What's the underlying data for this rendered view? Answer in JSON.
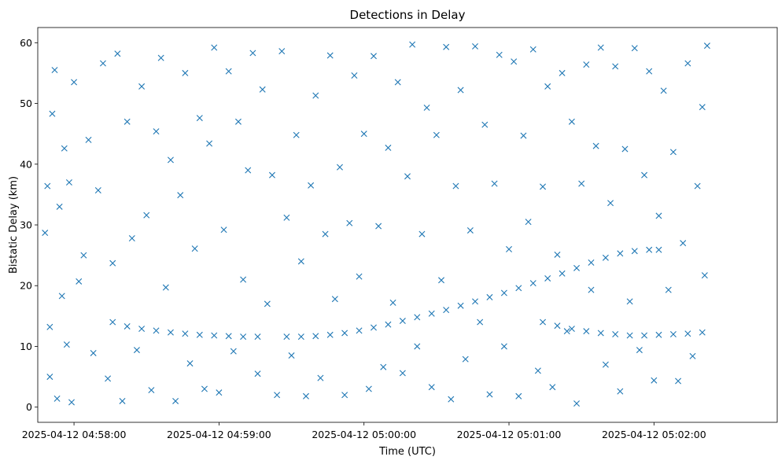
{
  "chart_data": {
    "type": "scatter",
    "title": "Detections in Delay",
    "xlabel": "Time (UTC)",
    "ylabel": "Bistatic Delay (km)",
    "marker": "x",
    "color": "#1f77b4",
    "grid": false,
    "legend": "none",
    "xlim": [
      "2025-04-12 04:57:45",
      "2025-04-12 05:02:51"
    ],
    "ylim": [
      -2.5,
      62.5
    ],
    "xticks": [
      "2025-04-12 04:58:00",
      "2025-04-12 04:59:00",
      "2025-04-12 05:00:00",
      "2025-04-12 05:01:00",
      "2025-04-12 05:02:00"
    ],
    "yticks": [
      0,
      10,
      20,
      30,
      40,
      50,
      60
    ],
    "series": [
      {
        "note": "target track segments (dense connected curves)",
        "points": [
          [
            "2025-04-12 04:58:16",
            14.0
          ],
          [
            "2025-04-12 04:58:22",
            13.3
          ],
          [
            "2025-04-12 04:58:28",
            12.9
          ],
          [
            "2025-04-12 04:58:34",
            12.6
          ],
          [
            "2025-04-12 04:58:40",
            12.3
          ],
          [
            "2025-04-12 04:58:46",
            12.1
          ],
          [
            "2025-04-12 04:58:52",
            11.9
          ],
          [
            "2025-04-12 04:58:58",
            11.8
          ],
          [
            "2025-04-12 04:59:04",
            11.7
          ],
          [
            "2025-04-12 04:59:10",
            11.6
          ],
          [
            "2025-04-12 04:59:16",
            11.6
          ],
          [
            "2025-04-12 04:59:28",
            11.6
          ],
          [
            "2025-04-12 04:59:34",
            11.6
          ],
          [
            "2025-04-12 04:59:40",
            11.7
          ],
          [
            "2025-04-12 04:59:46",
            11.9
          ],
          [
            "2025-04-12 04:59:52",
            12.2
          ],
          [
            "2025-04-12 04:59:58",
            12.6
          ],
          [
            "2025-04-12 05:00:04",
            13.1
          ],
          [
            "2025-04-12 05:00:10",
            13.6
          ],
          [
            "2025-04-12 05:00:16",
            14.2
          ],
          [
            "2025-04-12 05:00:22",
            14.8
          ],
          [
            "2025-04-12 05:00:28",
            15.4
          ],
          [
            "2025-04-12 05:00:34",
            16.0
          ],
          [
            "2025-04-12 05:00:40",
            16.7
          ],
          [
            "2025-04-12 05:00:46",
            17.4
          ],
          [
            "2025-04-12 05:00:52",
            18.1
          ],
          [
            "2025-04-12 05:00:58",
            18.8
          ],
          [
            "2025-04-12 05:01:04",
            19.6
          ],
          [
            "2025-04-12 05:01:10",
            20.4
          ],
          [
            "2025-04-12 05:01:16",
            21.2
          ],
          [
            "2025-04-12 05:01:22",
            22.0
          ],
          [
            "2025-04-12 05:01:28",
            22.9
          ],
          [
            "2025-04-12 05:01:34",
            23.8
          ],
          [
            "2025-04-12 05:01:40",
            24.6
          ],
          [
            "2025-04-12 05:01:46",
            25.3
          ],
          [
            "2025-04-12 05:01:52",
            25.7
          ],
          [
            "2025-04-12 05:01:58",
            25.9
          ],
          [
            "2025-04-12 05:02:02",
            25.9
          ],
          [
            "2025-04-12 05:01:14",
            14.0
          ],
          [
            "2025-04-12 05:01:20",
            13.4
          ],
          [
            "2025-04-12 05:01:26",
            12.9
          ],
          [
            "2025-04-12 05:01:32",
            12.5
          ],
          [
            "2025-04-12 05:01:38",
            12.2
          ],
          [
            "2025-04-12 05:01:44",
            12.0
          ],
          [
            "2025-04-12 05:01:50",
            11.8
          ],
          [
            "2025-04-12 05:01:56",
            11.8
          ],
          [
            "2025-04-12 05:02:02",
            11.9
          ],
          [
            "2025-04-12 05:02:08",
            12.0
          ],
          [
            "2025-04-12 05:02:14",
            12.1
          ],
          [
            "2025-04-12 05:02:20",
            12.3
          ]
        ]
      },
      {
        "note": "clutter / false detections (sampled)",
        "points": [
          [
            "2025-04-12 04:57:48",
            28.7
          ],
          [
            "2025-04-12 04:57:49",
            36.4
          ],
          [
            "2025-04-12 04:57:50",
            13.2
          ],
          [
            "2025-04-12 04:57:50",
            5.0
          ],
          [
            "2025-04-12 04:57:51",
            48.3
          ],
          [
            "2025-04-12 04:57:52",
            55.5
          ],
          [
            "2025-04-12 04:57:53",
            1.4
          ],
          [
            "2025-04-12 04:57:54",
            33.0
          ],
          [
            "2025-04-12 04:57:55",
            18.3
          ],
          [
            "2025-04-12 04:57:56",
            42.6
          ],
          [
            "2025-04-12 04:57:57",
            10.3
          ],
          [
            "2025-04-12 04:57:58",
            37.0
          ],
          [
            "2025-04-12 04:57:59",
            0.8
          ],
          [
            "2025-04-12 04:58:00",
            53.5
          ],
          [
            "2025-04-12 04:58:02",
            20.7
          ],
          [
            "2025-04-12 04:58:04",
            25.0
          ],
          [
            "2025-04-12 04:58:06",
            44.0
          ],
          [
            "2025-04-12 04:58:08",
            8.9
          ],
          [
            "2025-04-12 04:58:10",
            35.7
          ],
          [
            "2025-04-12 04:58:12",
            56.6
          ],
          [
            "2025-04-12 04:58:14",
            4.7
          ],
          [
            "2025-04-12 04:58:16",
            23.7
          ],
          [
            "2025-04-12 04:58:18",
            58.2
          ],
          [
            "2025-04-12 04:58:20",
            1.0
          ],
          [
            "2025-04-12 04:58:22",
            47.0
          ],
          [
            "2025-04-12 04:58:24",
            27.8
          ],
          [
            "2025-04-12 04:58:26",
            9.4
          ],
          [
            "2025-04-12 04:58:28",
            52.8
          ],
          [
            "2025-04-12 04:58:30",
            31.6
          ],
          [
            "2025-04-12 04:58:32",
            2.8
          ],
          [
            "2025-04-12 04:58:34",
            45.4
          ],
          [
            "2025-04-12 04:58:36",
            57.5
          ],
          [
            "2025-04-12 04:58:38",
            19.7
          ],
          [
            "2025-04-12 04:58:40",
            40.7
          ],
          [
            "2025-04-12 04:58:42",
            1.0
          ],
          [
            "2025-04-12 04:58:44",
            34.9
          ],
          [
            "2025-04-12 04:58:46",
            55.0
          ],
          [
            "2025-04-12 04:58:48",
            7.2
          ],
          [
            "2025-04-12 04:58:50",
            26.1
          ],
          [
            "2025-04-12 04:58:52",
            47.6
          ],
          [
            "2025-04-12 04:58:54",
            3.0
          ],
          [
            "2025-04-12 04:58:56",
            43.4
          ],
          [
            "2025-04-12 04:58:58",
            59.2
          ],
          [
            "2025-04-12 04:59:00",
            2.4
          ],
          [
            "2025-04-12 04:59:02",
            29.2
          ],
          [
            "2025-04-12 04:59:04",
            55.3
          ],
          [
            "2025-04-12 04:59:06",
            9.2
          ],
          [
            "2025-04-12 04:59:08",
            47.0
          ],
          [
            "2025-04-12 04:59:10",
            21.0
          ],
          [
            "2025-04-12 04:59:12",
            39.0
          ],
          [
            "2025-04-12 04:59:14",
            58.3
          ],
          [
            "2025-04-12 04:59:16",
            5.5
          ],
          [
            "2025-04-12 04:59:18",
            52.3
          ],
          [
            "2025-04-12 04:59:20",
            17.0
          ],
          [
            "2025-04-12 04:59:22",
            38.2
          ],
          [
            "2025-04-12 04:59:24",
            2.0
          ],
          [
            "2025-04-12 04:59:26",
            58.6
          ],
          [
            "2025-04-12 04:59:28",
            31.2
          ],
          [
            "2025-04-12 04:59:30",
            8.5
          ],
          [
            "2025-04-12 04:59:32",
            44.8
          ],
          [
            "2025-04-12 04:59:34",
            24.0
          ],
          [
            "2025-04-12 04:59:36",
            1.8
          ],
          [
            "2025-04-12 04:59:38",
            36.5
          ],
          [
            "2025-04-12 04:59:40",
            51.3
          ],
          [
            "2025-04-12 04:59:42",
            4.8
          ],
          [
            "2025-04-12 04:59:44",
            28.5
          ],
          [
            "2025-04-12 04:59:46",
            57.9
          ],
          [
            "2025-04-12 04:59:48",
            17.8
          ],
          [
            "2025-04-12 04:59:50",
            39.5
          ],
          [
            "2025-04-12 04:59:52",
            2.0
          ],
          [
            "2025-04-12 04:59:54",
            30.3
          ],
          [
            "2025-04-12 04:59:56",
            54.6
          ],
          [
            "2025-04-12 04:59:58",
            21.5
          ],
          [
            "2025-04-12 05:00:00",
            45.0
          ],
          [
            "2025-04-12 05:00:02",
            3.0
          ],
          [
            "2025-04-12 05:00:04",
            57.8
          ],
          [
            "2025-04-12 05:00:06",
            29.8
          ],
          [
            "2025-04-12 05:00:08",
            6.6
          ],
          [
            "2025-04-12 05:00:10",
            42.7
          ],
          [
            "2025-04-12 05:00:12",
            17.2
          ],
          [
            "2025-04-12 05:00:14",
            53.5
          ],
          [
            "2025-04-12 05:00:16",
            5.6
          ],
          [
            "2025-04-12 05:00:18",
            38.0
          ],
          [
            "2025-04-12 05:00:20",
            59.7
          ],
          [
            "2025-04-12 05:00:22",
            10.0
          ],
          [
            "2025-04-12 05:00:24",
            28.5
          ],
          [
            "2025-04-12 05:00:26",
            49.3
          ],
          [
            "2025-04-12 05:00:28",
            3.3
          ],
          [
            "2025-04-12 05:00:30",
            44.8
          ],
          [
            "2025-04-12 05:00:32",
            20.9
          ],
          [
            "2025-04-12 05:00:34",
            59.3
          ],
          [
            "2025-04-12 05:00:36",
            1.3
          ],
          [
            "2025-04-12 05:00:38",
            36.4
          ],
          [
            "2025-04-12 05:00:40",
            52.2
          ],
          [
            "2025-04-12 05:00:42",
            7.9
          ],
          [
            "2025-04-12 05:00:44",
            29.1
          ],
          [
            "2025-04-12 05:00:46",
            59.4
          ],
          [
            "2025-04-12 05:00:48",
            14.0
          ],
          [
            "2025-04-12 05:00:50",
            46.5
          ],
          [
            "2025-04-12 05:00:52",
            2.1
          ],
          [
            "2025-04-12 05:00:54",
            36.8
          ],
          [
            "2025-04-12 05:00:56",
            58.0
          ],
          [
            "2025-04-12 05:00:58",
            10.0
          ],
          [
            "2025-04-12 05:01:00",
            26.0
          ],
          [
            "2025-04-12 05:01:02",
            56.9
          ],
          [
            "2025-04-12 05:01:04",
            1.8
          ],
          [
            "2025-04-12 05:01:06",
            44.7
          ],
          [
            "2025-04-12 05:01:08",
            30.5
          ],
          [
            "2025-04-12 05:01:10",
            58.9
          ],
          [
            "2025-04-12 05:01:12",
            6.0
          ],
          [
            "2025-04-12 05:01:14",
            36.3
          ],
          [
            "2025-04-12 05:01:16",
            52.8
          ],
          [
            "2025-04-12 05:01:18",
            3.3
          ],
          [
            "2025-04-12 05:01:20",
            25.1
          ],
          [
            "2025-04-12 05:01:22",
            55.0
          ],
          [
            "2025-04-12 05:01:24",
            12.5
          ],
          [
            "2025-04-12 05:01:26",
            47.0
          ],
          [
            "2025-04-12 05:01:28",
            0.6
          ],
          [
            "2025-04-12 05:01:30",
            36.8
          ],
          [
            "2025-04-12 05:01:32",
            56.4
          ],
          [
            "2025-04-12 05:01:34",
            19.3
          ],
          [
            "2025-04-12 05:01:36",
            43.0
          ],
          [
            "2025-04-12 05:01:38",
            59.2
          ],
          [
            "2025-04-12 05:01:40",
            7.0
          ],
          [
            "2025-04-12 05:01:42",
            33.6
          ],
          [
            "2025-04-12 05:01:44",
            56.1
          ],
          [
            "2025-04-12 05:01:46",
            2.6
          ],
          [
            "2025-04-12 05:01:48",
            42.5
          ],
          [
            "2025-04-12 05:01:50",
            17.4
          ],
          [
            "2025-04-12 05:01:52",
            59.1
          ],
          [
            "2025-04-12 05:01:54",
            9.4
          ],
          [
            "2025-04-12 05:01:56",
            38.2
          ],
          [
            "2025-04-12 05:01:58",
            55.3
          ],
          [
            "2025-04-12 05:02:00",
            4.4
          ],
          [
            "2025-04-12 05:02:02",
            31.5
          ],
          [
            "2025-04-12 05:02:04",
            52.1
          ],
          [
            "2025-04-12 05:02:06",
            19.3
          ],
          [
            "2025-04-12 05:02:08",
            42.0
          ],
          [
            "2025-04-12 05:02:10",
            4.3
          ],
          [
            "2025-04-12 05:02:12",
            27.0
          ],
          [
            "2025-04-12 05:02:14",
            56.6
          ],
          [
            "2025-04-12 05:02:16",
            8.4
          ],
          [
            "2025-04-12 05:02:18",
            36.4
          ],
          [
            "2025-04-12 05:02:20",
            49.4
          ],
          [
            "2025-04-12 05:02:21",
            21.7
          ],
          [
            "2025-04-12 05:02:22",
            59.5
          ]
        ]
      }
    ]
  }
}
